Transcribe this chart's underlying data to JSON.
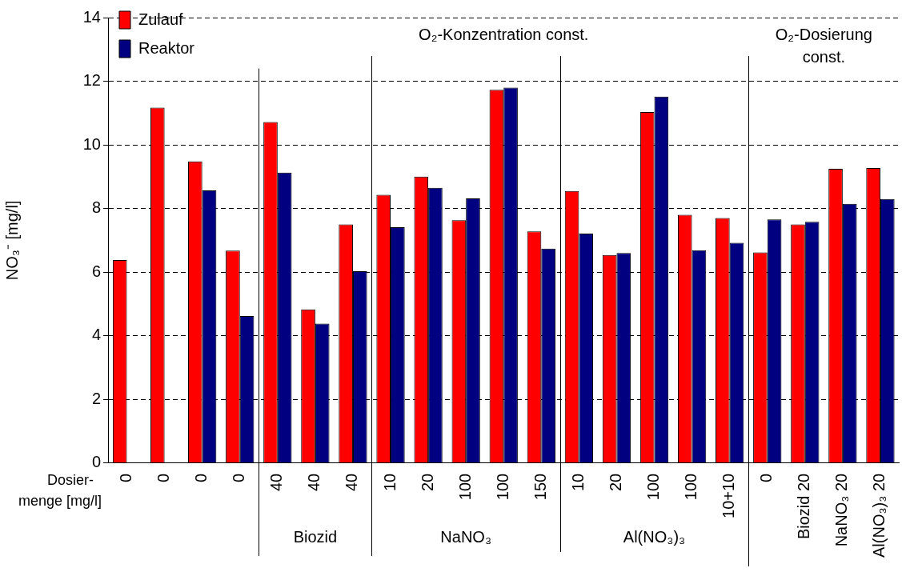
{
  "chart_data": {
    "type": "bar",
    "ylabel": "NO₃⁻ [mg/l]",
    "categories": [
      "0",
      "0",
      "0",
      "0",
      "40",
      "40",
      "40",
      "10",
      "20",
      "100",
      "100",
      "150",
      "10",
      "20",
      "100",
      "100",
      "10+10",
      "0",
      "Biozid 20",
      "NaNO₃ 20",
      "Al(NO₃)₃ 20"
    ],
    "series": [
      {
        "name": "Zulauf",
        "color": "#ff0000",
        "values": [
          6.38,
          11.17,
          9.48,
          6.68,
          10.72,
          4.83,
          7.5,
          8.43,
          9.0,
          7.63,
          11.73,
          7.28,
          8.55,
          6.54,
          11.03,
          7.8,
          7.7,
          6.62,
          7.5,
          9.25,
          9.27
        ]
      },
      {
        "name": "Reaktor",
        "color": "#000080",
        "values": [
          null,
          null,
          8.57,
          4.62,
          9.13,
          4.38,
          6.03,
          7.41,
          8.65,
          8.32,
          11.8,
          6.74,
          7.21,
          6.6,
          11.52,
          6.69,
          6.92,
          7.66,
          7.58,
          8.15,
          8.3
        ]
      }
    ],
    "ylim": [
      0,
      14
    ],
    "yticks": [
      0,
      2,
      4,
      6,
      8,
      10,
      12,
      14
    ],
    "grid": "y",
    "line_style": "dashed",
    "legend": "top left",
    "annotations": [
      "O₂-Konzentration const.",
      "O₂-Dosierung const.",
      "Dosier-menge [mg/l]",
      "Biozid",
      "NaNO₃",
      "Al(NO₃)₃"
    ]
  }
}
